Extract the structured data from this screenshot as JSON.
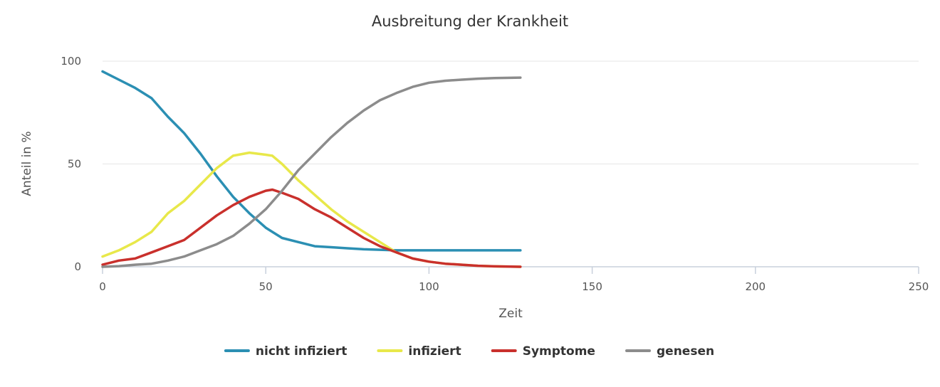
{
  "chart_data": {
    "type": "line",
    "title": "Ausbreitung der Krankheit",
    "xlabel": "Zeit",
    "ylabel": "Anteil in %",
    "xlim": [
      0,
      250
    ],
    "ylim": [
      0,
      100
    ],
    "x_ticks": [
      "0",
      "50",
      "100",
      "150",
      "200",
      "250"
    ],
    "y_ticks": [
      "0",
      "50",
      "100"
    ],
    "grid": "horizontal",
    "legend_position": "bottom",
    "series": [
      {
        "name": "nicht infiziert",
        "color": "#2b8fb3",
        "x": [
          0,
          5,
          10,
          15,
          20,
          25,
          30,
          35,
          40,
          45,
          50,
          55,
          60,
          65,
          70,
          75,
          80,
          90,
          100,
          110,
          120,
          128
        ],
        "y": [
          95,
          91,
          87,
          82,
          73,
          65,
          55,
          44,
          34,
          26,
          19,
          14,
          12,
          10,
          9.5,
          9,
          8.5,
          8,
          8,
          8,
          8,
          8
        ]
      },
      {
        "name": "infiziert",
        "color": "#e8e84a",
        "x": [
          0,
          5,
          10,
          15,
          20,
          25,
          30,
          35,
          40,
          45,
          50,
          52,
          55,
          60,
          65,
          70,
          75,
          80,
          85,
          90,
          95,
          100,
          105,
          110,
          115,
          120,
          128
        ],
        "y": [
          5,
          8,
          12,
          17,
          26,
          32,
          40,
          48,
          54,
          55.5,
          54.5,
          54,
          50,
          42,
          35,
          28,
          22,
          17,
          12,
          7,
          4,
          2.5,
          1.5,
          1,
          0.5,
          0.2,
          0
        ]
      },
      {
        "name": "Symptome",
        "color": "#c9302c",
        "x": [
          0,
          5,
          10,
          15,
          20,
          25,
          30,
          35,
          40,
          45,
          50,
          52,
          55,
          60,
          65,
          70,
          75,
          80,
          85,
          90,
          95,
          100,
          105,
          110,
          115,
          120,
          128
        ],
        "y": [
          1,
          3,
          4,
          7,
          10,
          13,
          19,
          25,
          30,
          34,
          37,
          37.5,
          36,
          33,
          28,
          24,
          19,
          14,
          10,
          7,
          4,
          2.5,
          1.5,
          1,
          0.5,
          0.2,
          0
        ]
      },
      {
        "name": "genesen",
        "color": "#8c8c8c",
        "x": [
          0,
          5,
          10,
          15,
          20,
          25,
          30,
          35,
          40,
          45,
          50,
          55,
          60,
          65,
          70,
          75,
          80,
          85,
          90,
          95,
          100,
          105,
          110,
          115,
          120,
          128
        ],
        "y": [
          0,
          0.3,
          1,
          1.5,
          3,
          5,
          8,
          11,
          15,
          21,
          28,
          37,
          47,
          55,
          63,
          70,
          76,
          81,
          84.5,
          87.5,
          89.5,
          90.5,
          91,
          91.5,
          91.8,
          92
        ]
      }
    ]
  }
}
